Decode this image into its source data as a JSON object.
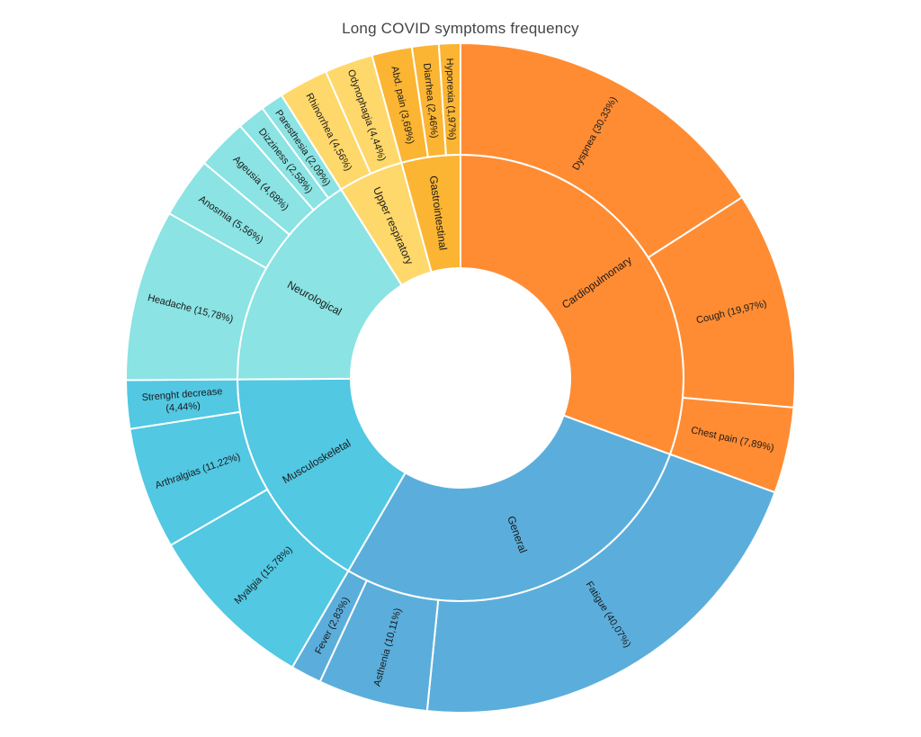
{
  "chart_data": {
    "type": "sunburst",
    "title": "Long COVID symptoms frequency",
    "categories": [
      {
        "name": "Cardiopulmonary",
        "color": "#FF8C33",
        "children": [
          {
            "label": "Dyspnea (30,33%)",
            "value": 30.33
          },
          {
            "label": "Cough (19,97%)",
            "value": 19.97
          },
          {
            "label": "Chest pain (7,89%)",
            "value": 7.89
          }
        ]
      },
      {
        "name": "General",
        "color": "#5BAEDB",
        "children": [
          {
            "label": "Fatigue (40,07%)",
            "value": 40.07
          },
          {
            "label": "Asthenia (10,11%)",
            "value": 10.11
          },
          {
            "label": "Fever (2,83%)",
            "value": 2.83
          }
        ]
      },
      {
        "name": "Musculoskeletal",
        "color": "#52C8E3",
        "children": [
          {
            "label": "Myalgia (15,78%)",
            "value": 15.78
          },
          {
            "label": "Arthralgias (11,22%)",
            "value": 11.22
          },
          {
            "label": [
              "Strenght decrease",
              "(4,44%)"
            ],
            "value": 4.44
          }
        ]
      },
      {
        "name": "Neurological",
        "color": "#8BE3E3",
        "children": [
          {
            "label": "Headache (15,78%)",
            "value": 15.78
          },
          {
            "label": "Anosmia (5,56%)",
            "value": 5.56
          },
          {
            "label": "Ageusia (4,68%)",
            "value": 4.68
          },
          {
            "label": "Dizziness (2,58%)",
            "value": 2.58
          },
          {
            "label": "Paresthesia (2,09%)",
            "value": 2.09
          }
        ]
      },
      {
        "name": "Upper respiratory",
        "color": "#FFD86B",
        "children": [
          {
            "label": "Rhinorrhea (4,56%)",
            "value": 4.56
          },
          {
            "label": "Odynophagia (4,44%)",
            "value": 4.44
          }
        ]
      },
      {
        "name": "Gastrointestinal",
        "color": "#FBB533",
        "children": [
          {
            "label": "Abd. pain (3,69%)",
            "value": 3.69
          },
          {
            "label": "Diarrhea (2,46%)",
            "value": 2.46
          },
          {
            "label": "Hyporexia (1,97%)",
            "value": 1.97
          }
        ]
      }
    ]
  }
}
